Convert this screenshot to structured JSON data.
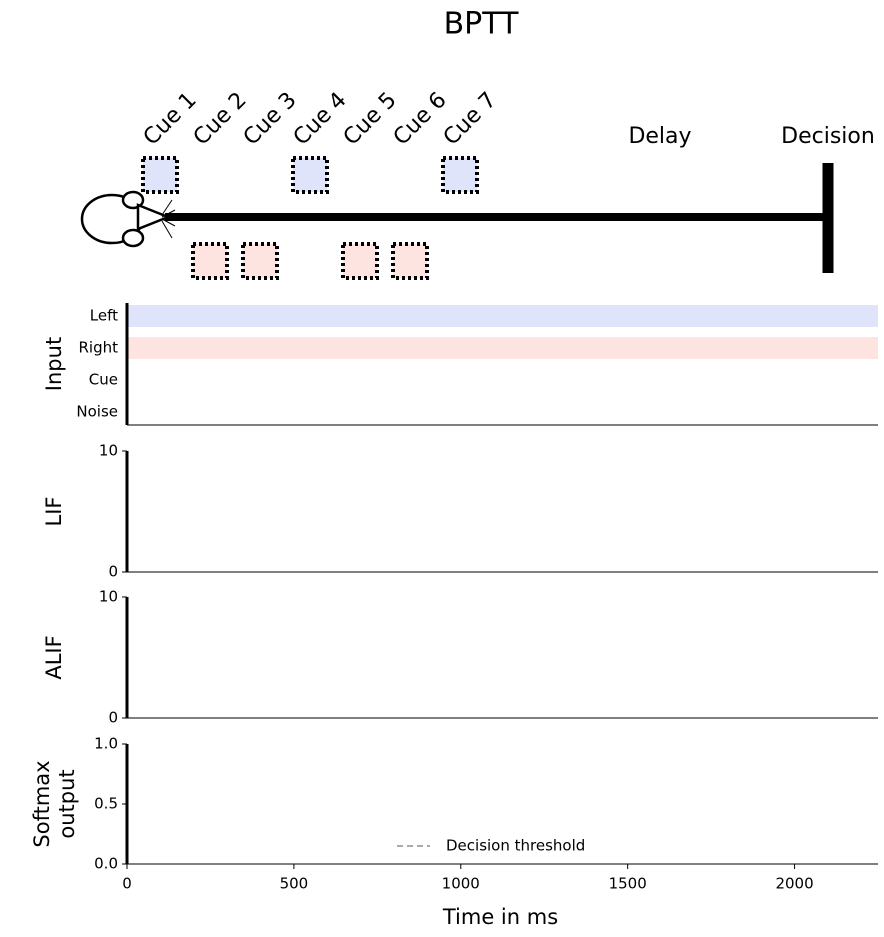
{
  "title": "BPTT",
  "task": {
    "cues": [
      "Cue 1",
      "Cue 2",
      "Cue 3",
      "Cue 4",
      "Cue 5",
      "Cue 6",
      "Cue 7"
    ],
    "cue_colors": [
      "#e0e4fa",
      "#fde4e0",
      "#fde4e0",
      "#e0e4fa",
      "#fde4e0",
      "#fde4e0",
      "#e0e4fa"
    ],
    "delay_label": "Delay",
    "decision_label": "Decision"
  },
  "chart_data": [
    {
      "type": "raster",
      "ylabel": "Input",
      "categories": [
        "Left",
        "Right",
        "Cue",
        "Noise"
      ],
      "band_colors": [
        "#e0e4fa",
        "#fde4e0",
        null,
        null
      ],
      "xlim": [
        0,
        2250
      ]
    },
    {
      "type": "raster",
      "ylabel": "LIF",
      "ylim": [
        0,
        10
      ],
      "yticks": [
        0,
        10
      ],
      "xlim": [
        0,
        2250
      ]
    },
    {
      "type": "raster",
      "ylabel": "ALIF",
      "ylim": [
        0,
        10
      ],
      "yticks": [
        0,
        10
      ],
      "xlim": [
        0,
        2250
      ]
    },
    {
      "type": "line",
      "ylabel": "Softmax\noutput",
      "ylim": [
        0,
        1
      ],
      "yticks": [
        {
          "value": 0,
          "label": "0.0"
        },
        {
          "value": 0.5,
          "label": "0.5"
        },
        {
          "value": 1,
          "label": "1.0"
        }
      ],
      "series": [
        {
          "name": "Decision threshold",
          "color": "#aaaaaa"
        }
      ],
      "xlim": [
        0,
        2250
      ],
      "xticks": [
        0,
        500,
        1000,
        1500,
        2000
      ],
      "xlabel": "Time in ms"
    }
  ]
}
